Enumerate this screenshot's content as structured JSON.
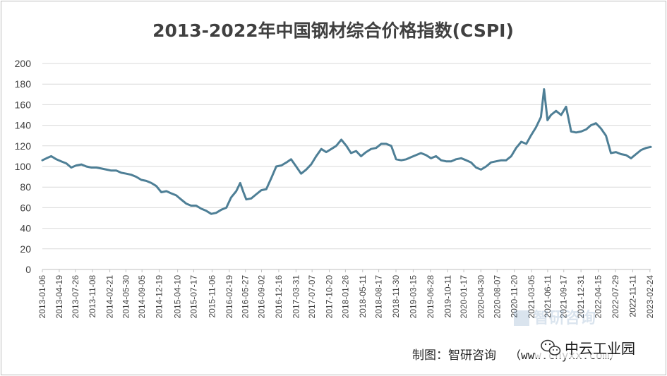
{
  "chart_data": {
    "type": "line",
    "title": "2013-2022年中国钢材综合价格指数(CSPI)",
    "xlabel": "",
    "ylabel": "",
    "ylim": [
      0,
      200
    ],
    "yticks": [
      0,
      20,
      40,
      60,
      80,
      100,
      120,
      140,
      160,
      180,
      200
    ],
    "x_range": [
      "2013-01-06",
      "2023-03-01"
    ],
    "grid": true,
    "legend": "none",
    "line_color": "#4e7f96",
    "x_tick_labels": [
      "2013-01-06",
      "2013-04-19",
      "2013-07-26",
      "2013-11-08",
      "2014-02-21",
      "2014-05-30",
      "2014-09-05",
      "2014-12-19",
      "2015-04-10",
      "2015-07-17",
      "2015-11-06",
      "2016-02-19",
      "2016-05-27",
      "2016-09-02",
      "2016-12-16",
      "2017-03-31",
      "2017-07-07",
      "2017-10-20",
      "2018-01-26",
      "2018-05-11",
      "2018-08-17",
      "2018-11-30",
      "2019-03-15",
      "2019-06-28",
      "2019-10-11",
      "2020-01-17",
      "2020-04-30",
      "2020-08-07",
      "2020-11-20",
      "2021-03-05",
      "2021-06-11",
      "2021-09-17",
      "2021-12-31",
      "2022-04-15",
      "2022-07-29",
      "2022-11-11",
      "2023-02-24"
    ],
    "series": [
      {
        "points": [
          [
            "2013-01-06",
            106
          ],
          [
            "2013-02-01",
            108
          ],
          [
            "2013-03-01",
            110
          ],
          [
            "2013-04-01",
            107
          ],
          [
            "2013-05-01",
            105
          ],
          [
            "2013-06-01",
            103
          ],
          [
            "2013-07-01",
            99
          ],
          [
            "2013-08-01",
            101
          ],
          [
            "2013-09-01",
            102
          ],
          [
            "2013-10-01",
            100
          ],
          [
            "2013-11-01",
            99
          ],
          [
            "2013-12-01",
            99
          ],
          [
            "2014-01-01",
            98
          ],
          [
            "2014-02-01",
            97
          ],
          [
            "2014-03-01",
            96
          ],
          [
            "2014-04-01",
            96
          ],
          [
            "2014-05-01",
            94
          ],
          [
            "2014-06-01",
            93
          ],
          [
            "2014-07-01",
            92
          ],
          [
            "2014-08-01",
            90
          ],
          [
            "2014-09-01",
            87
          ],
          [
            "2014-10-01",
            86
          ],
          [
            "2014-11-01",
            84
          ],
          [
            "2014-12-01",
            81
          ],
          [
            "2015-01-01",
            75
          ],
          [
            "2015-02-01",
            76
          ],
          [
            "2015-03-01",
            74
          ],
          [
            "2015-04-01",
            72
          ],
          [
            "2015-05-01",
            68
          ],
          [
            "2015-06-01",
            64
          ],
          [
            "2015-07-01",
            62
          ],
          [
            "2015-08-01",
            62
          ],
          [
            "2015-09-01",
            59
          ],
          [
            "2015-10-01",
            57
          ],
          [
            "2015-11-01",
            54
          ],
          [
            "2015-12-01",
            55
          ],
          [
            "2016-01-01",
            58
          ],
          [
            "2016-02-01",
            60
          ],
          [
            "2016-03-01",
            70
          ],
          [
            "2016-04-01",
            76
          ],
          [
            "2016-04-25",
            84
          ],
          [
            "2016-05-15",
            75
          ],
          [
            "2016-06-01",
            68
          ],
          [
            "2016-07-01",
            69
          ],
          [
            "2016-08-01",
            73
          ],
          [
            "2016-09-01",
            77
          ],
          [
            "2016-10-01",
            78
          ],
          [
            "2016-11-01",
            89
          ],
          [
            "2016-12-01",
            100
          ],
          [
            "2017-01-01",
            101
          ],
          [
            "2017-02-01",
            104
          ],
          [
            "2017-03-01",
            107
          ],
          [
            "2017-04-01",
            100
          ],
          [
            "2017-05-01",
            93
          ],
          [
            "2017-06-01",
            97
          ],
          [
            "2017-07-01",
            102
          ],
          [
            "2017-08-01",
            110
          ],
          [
            "2017-09-01",
            117
          ],
          [
            "2017-10-01",
            114
          ],
          [
            "2017-11-01",
            117
          ],
          [
            "2017-12-01",
            120
          ],
          [
            "2018-01-01",
            126
          ],
          [
            "2018-02-01",
            120
          ],
          [
            "2018-03-01",
            113
          ],
          [
            "2018-04-01",
            115
          ],
          [
            "2018-05-01",
            110
          ],
          [
            "2018-06-01",
            114
          ],
          [
            "2018-07-01",
            117
          ],
          [
            "2018-08-01",
            118
          ],
          [
            "2018-09-01",
            122
          ],
          [
            "2018-10-01",
            122
          ],
          [
            "2018-11-01",
            120
          ],
          [
            "2018-12-01",
            107
          ],
          [
            "2019-01-01",
            106
          ],
          [
            "2019-02-01",
            107
          ],
          [
            "2019-03-01",
            109
          ],
          [
            "2019-04-01",
            111
          ],
          [
            "2019-05-01",
            113
          ],
          [
            "2019-06-01",
            111
          ],
          [
            "2019-07-01",
            108
          ],
          [
            "2019-08-01",
            110
          ],
          [
            "2019-09-01",
            106
          ],
          [
            "2019-10-01",
            105
          ],
          [
            "2019-11-01",
            105
          ],
          [
            "2019-12-01",
            107
          ],
          [
            "2020-01-01",
            108
          ],
          [
            "2020-02-01",
            106
          ],
          [
            "2020-03-01",
            104
          ],
          [
            "2020-04-01",
            99
          ],
          [
            "2020-05-01",
            97
          ],
          [
            "2020-06-01",
            100
          ],
          [
            "2020-07-01",
            104
          ],
          [
            "2020-08-01",
            105
          ],
          [
            "2020-09-01",
            106
          ],
          [
            "2020-10-01",
            106
          ],
          [
            "2020-11-01",
            110
          ],
          [
            "2020-12-01",
            118
          ],
          [
            "2021-01-01",
            124
          ],
          [
            "2021-02-01",
            122
          ],
          [
            "2021-03-01",
            130
          ],
          [
            "2021-04-01",
            138
          ],
          [
            "2021-05-01",
            148
          ],
          [
            "2021-05-20",
            175
          ],
          [
            "2021-06-10",
            145
          ],
          [
            "2021-07-01",
            150
          ],
          [
            "2021-08-01",
            154
          ],
          [
            "2021-09-01",
            150
          ],
          [
            "2021-10-01",
            158
          ],
          [
            "2021-11-01",
            134
          ],
          [
            "2021-12-01",
            133
          ],
          [
            "2022-01-01",
            134
          ],
          [
            "2022-02-01",
            136
          ],
          [
            "2022-03-01",
            140
          ],
          [
            "2022-04-01",
            142
          ],
          [
            "2022-05-01",
            137
          ],
          [
            "2022-06-01",
            130
          ],
          [
            "2022-07-01",
            113
          ],
          [
            "2022-08-01",
            114
          ],
          [
            "2022-09-01",
            112
          ],
          [
            "2022-10-01",
            111
          ],
          [
            "2022-11-01",
            108
          ],
          [
            "2022-12-01",
            112
          ],
          [
            "2023-01-01",
            116
          ],
          [
            "2023-02-01",
            118
          ],
          [
            "2023-03-01",
            119
          ]
        ]
      }
    ]
  },
  "credit": {
    "label": "制图：智研咨询",
    "url": "（www.chyxx.com）"
  },
  "watermark": {
    "brand_text": "中云工业园",
    "icon": "wechat-icon",
    "faded_text": "智研咨询"
  }
}
